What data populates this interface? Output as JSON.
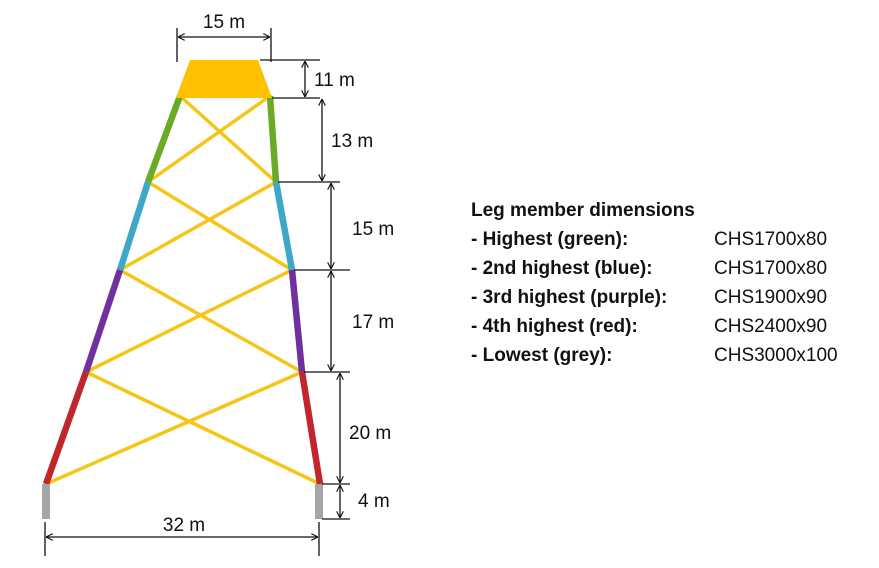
{
  "dimensions": {
    "top_width": "15 m",
    "base_width": "32 m",
    "heights": [
      "11 m",
      "13 m",
      "15 m",
      "17 m",
      "20 m",
      "4 m"
    ]
  },
  "legend": {
    "title": "Leg member dimensions",
    "items": [
      {
        "label": "- Highest (green):",
        "value": "CHS1700x80"
      },
      {
        "label": "- 2nd highest (blue):",
        "value": "CHS1700x80"
      },
      {
        "label": "- 3rd highest (purple):",
        "value": "CHS1900x90"
      },
      {
        "label": "- 4th highest (red):",
        "value": "CHS2400x90"
      },
      {
        "label": "- Lowest (grey):",
        "value": "CHS3000x100"
      }
    ]
  },
  "colors": {
    "transition_piece": "#ffc000",
    "bracing": "#f5c518",
    "highest": "#6aab26",
    "second_highest": "#3fa8c8",
    "third_highest": "#7030a0",
    "fourth_highest": "#c0262c",
    "lowest": "#a6a6a6",
    "dimension_line": "#111111"
  }
}
